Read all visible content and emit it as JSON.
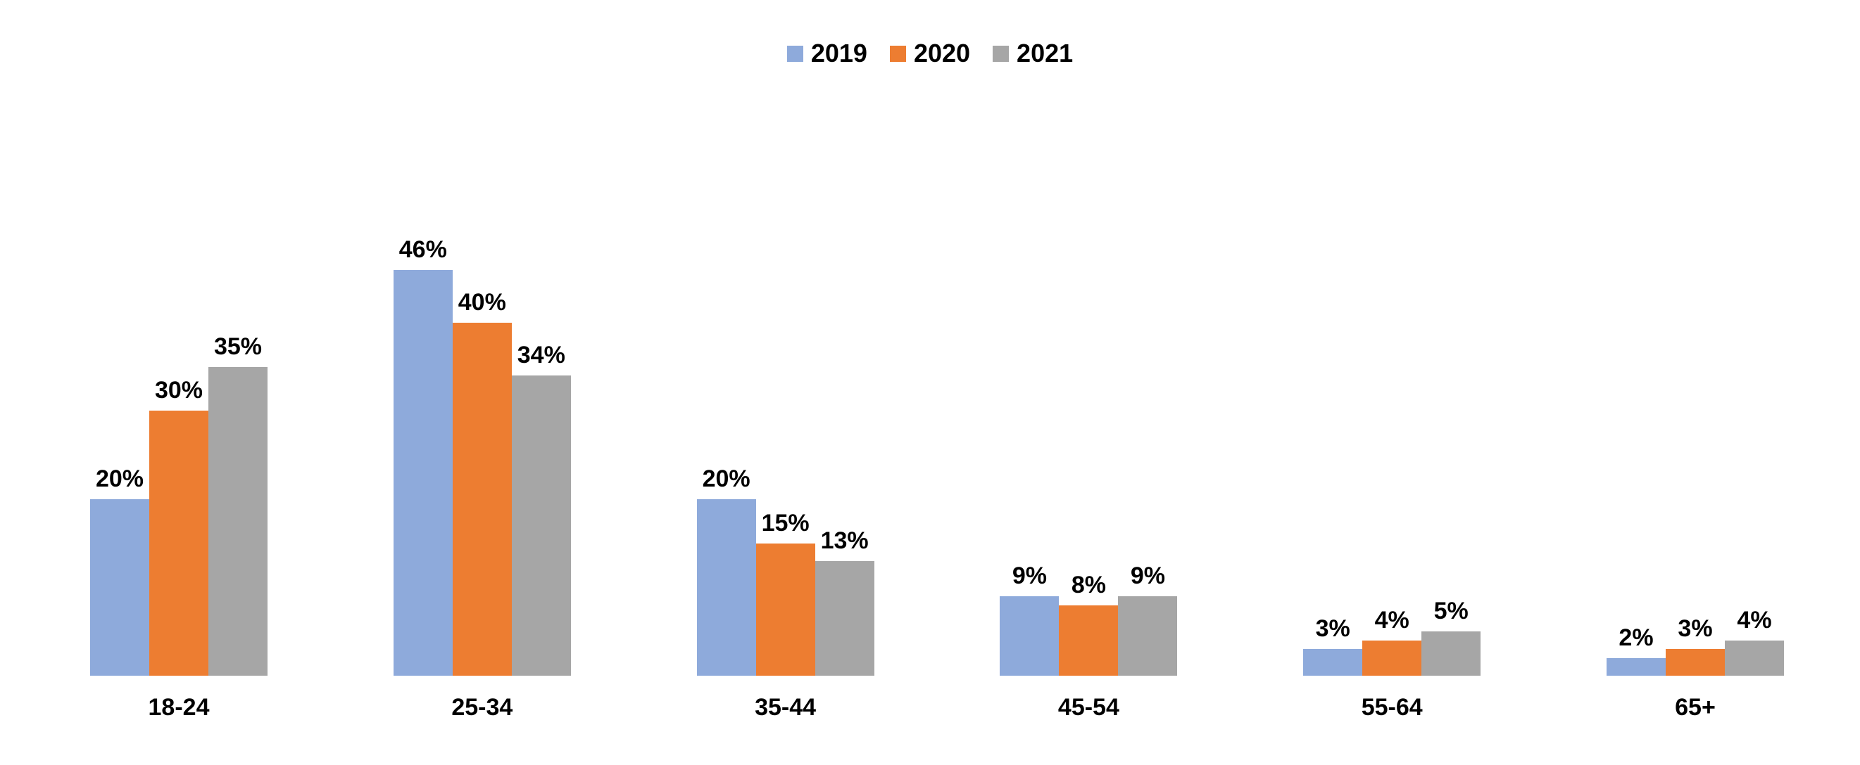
{
  "chart_data": {
    "type": "bar",
    "title": "",
    "xlabel": "",
    "ylabel": "",
    "categories": [
      "18-24",
      "25-34",
      "35-44",
      "45-54",
      "55-64",
      "65+"
    ],
    "series": [
      {
        "name": "2019",
        "color": "#8EAADB",
        "values": [
          20,
          46,
          20,
          9,
          3,
          2
        ]
      },
      {
        "name": "2020",
        "color": "#ED7D31",
        "values": [
          30,
          40,
          15,
          8,
          4,
          3
        ]
      },
      {
        "name": "2021",
        "color": "#A6A6A6",
        "values": [
          35,
          34,
          13,
          9,
          5,
          4
        ]
      }
    ],
    "value_suffix": "%",
    "data_labels": true,
    "grid": false,
    "axes_visible": false,
    "ylim": [
      0,
      50
    ],
    "legend_position": "top-center",
    "label_color": "#000000",
    "background_color": "#FFFFFF"
  }
}
